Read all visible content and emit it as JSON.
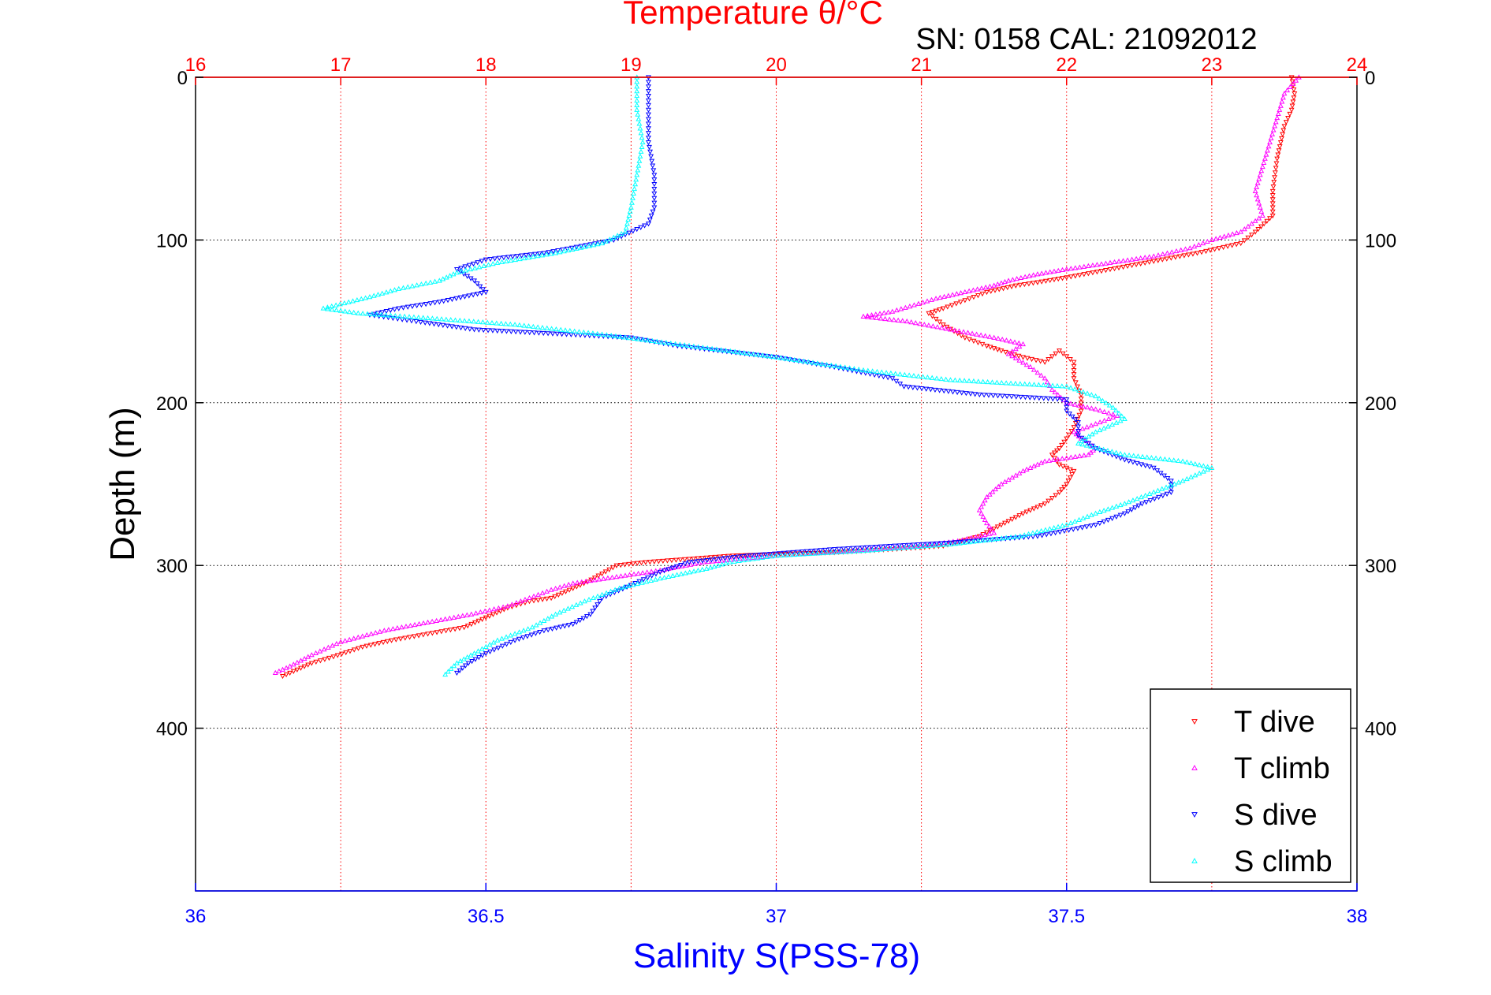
{
  "chart_data": {
    "type": "scatter",
    "title": "Temperature θ/°C",
    "subtitle": "SN: 0158  CAL: 21092012",
    "xlabel": "Salinity S(PSS-78)",
    "ylabel": "Depth (m)",
    "x_bottom": {
      "range": [
        36,
        38
      ],
      "ticks": [
        "36",
        "36.5",
        "37",
        "37.5",
        "38"
      ],
      "color": "#0000ff"
    },
    "x_top": {
      "range": [
        16,
        24
      ],
      "ticks": [
        "16",
        "17",
        "18",
        "19",
        "20",
        "21",
        "22",
        "23",
        "24"
      ],
      "color": "#ff0000"
    },
    "y": {
      "range": [
        0,
        500
      ],
      "reversed": true,
      "ticks": [
        "0",
        "100",
        "200",
        "300",
        "400"
      ]
    },
    "grid": true,
    "legend": {
      "placement": "bottom-right",
      "entries": [
        {
          "label": "T dive",
          "color": "#ff0000",
          "marker": "triangle-down"
        },
        {
          "label": "T climb",
          "color": "#ff00ff",
          "marker": "triangle-up"
        },
        {
          "label": "S dive",
          "color": "#0000ff",
          "marker": "triangle-down"
        },
        {
          "label": "S climb",
          "color": "#00ffff",
          "marker": "triangle-up"
        }
      ]
    },
    "series": [
      {
        "name": "T dive",
        "axis": "top",
        "color": "#ff0000",
        "marker": "triangle-down",
        "points": [
          [
            23.55,
            0
          ],
          [
            23.57,
            10
          ],
          [
            23.55,
            20
          ],
          [
            23.5,
            30
          ],
          [
            23.45,
            50
          ],
          [
            23.42,
            70
          ],
          [
            23.42,
            85
          ],
          [
            23.3,
            95
          ],
          [
            23.2,
            102
          ],
          [
            22.9,
            108
          ],
          [
            22.6,
            113
          ],
          [
            22.3,
            118
          ],
          [
            22.0,
            123
          ],
          [
            21.8,
            126
          ],
          [
            21.65,
            128
          ],
          [
            21.45,
            132
          ],
          [
            21.3,
            137
          ],
          [
            21.15,
            142
          ],
          [
            21.05,
            145
          ],
          [
            21.15,
            152
          ],
          [
            21.3,
            160
          ],
          [
            21.45,
            165
          ],
          [
            21.55,
            168
          ],
          [
            21.7,
            172
          ],
          [
            21.85,
            175
          ],
          [
            21.95,
            168
          ],
          [
            22.05,
            175
          ],
          [
            22.05,
            185
          ],
          [
            22.1,
            195
          ],
          [
            22.1,
            205
          ],
          [
            22.05,
            215
          ],
          [
            22.0,
            222
          ],
          [
            21.95,
            228
          ],
          [
            21.9,
            232
          ],
          [
            21.95,
            238
          ],
          [
            22.05,
            242
          ],
          [
            22.0,
            250
          ],
          [
            21.95,
            255
          ],
          [
            21.85,
            262
          ],
          [
            21.7,
            268
          ],
          [
            21.55,
            275
          ],
          [
            21.4,
            282
          ],
          [
            21.15,
            288
          ],
          [
            20.8,
            290
          ],
          [
            20.4,
            292
          ],
          [
            20.0,
            293
          ],
          [
            19.7,
            294
          ],
          [
            19.4,
            296
          ],
          [
            19.1,
            298
          ],
          [
            18.9,
            300
          ],
          [
            18.8,
            305
          ],
          [
            18.7,
            310
          ],
          [
            18.55,
            316
          ],
          [
            18.45,
            320
          ],
          [
            18.3,
            322
          ],
          [
            18.15,
            326
          ],
          [
            18.05,
            330
          ],
          [
            17.95,
            334
          ],
          [
            17.85,
            338
          ],
          [
            17.6,
            342
          ],
          [
            17.35,
            346
          ],
          [
            17.15,
            350
          ],
          [
            16.95,
            356
          ],
          [
            16.8,
            360
          ],
          [
            16.7,
            364
          ],
          [
            16.6,
            368
          ]
        ]
      },
      {
        "name": "T climb",
        "axis": "top",
        "color": "#ff00ff",
        "marker": "triangle-up",
        "points": [
          [
            23.6,
            0
          ],
          [
            23.5,
            10
          ],
          [
            23.45,
            25
          ],
          [
            23.4,
            40
          ],
          [
            23.35,
            55
          ],
          [
            23.3,
            70
          ],
          [
            23.35,
            85
          ],
          [
            23.2,
            95
          ],
          [
            23.0,
            100
          ],
          [
            22.85,
            105
          ],
          [
            22.6,
            110
          ],
          [
            22.3,
            114
          ],
          [
            22.0,
            118
          ],
          [
            21.8,
            121
          ],
          [
            21.6,
            125
          ],
          [
            21.5,
            128
          ],
          [
            21.3,
            132
          ],
          [
            21.1,
            136
          ],
          [
            20.95,
            140
          ],
          [
            20.8,
            144
          ],
          [
            20.6,
            147
          ],
          [
            20.9,
            150
          ],
          [
            21.2,
            155
          ],
          [
            21.5,
            160
          ],
          [
            21.7,
            164
          ],
          [
            21.6,
            170
          ],
          [
            21.75,
            178
          ],
          [
            21.85,
            185
          ],
          [
            21.9,
            192
          ],
          [
            22.0,
            200
          ],
          [
            22.2,
            204
          ],
          [
            22.35,
            208
          ],
          [
            22.2,
            213
          ],
          [
            22.05,
            218
          ],
          [
            22.1,
            222
          ],
          [
            22.2,
            228
          ],
          [
            22.15,
            232
          ],
          [
            21.85,
            236
          ],
          [
            21.7,
            242
          ],
          [
            21.55,
            250
          ],
          [
            21.45,
            258
          ],
          [
            21.4,
            266
          ],
          [
            21.45,
            274
          ],
          [
            21.5,
            280
          ],
          [
            21.25,
            285
          ],
          [
            21.0,
            288
          ],
          [
            20.5,
            291
          ],
          [
            20.0,
            294
          ],
          [
            19.5,
            298
          ],
          [
            19.2,
            303
          ],
          [
            18.9,
            307
          ],
          [
            18.6,
            311
          ],
          [
            18.45,
            315
          ],
          [
            18.3,
            320
          ],
          [
            18.15,
            325
          ],
          [
            17.9,
            330
          ],
          [
            17.6,
            335
          ],
          [
            17.3,
            340
          ],
          [
            17.0,
            347
          ],
          [
            16.8,
            355
          ],
          [
            16.65,
            362
          ],
          [
            16.55,
            366
          ]
        ]
      },
      {
        "name": "S dive",
        "axis": "bottom",
        "color": "#0000ff",
        "marker": "triangle-down",
        "points": [
          [
            36.78,
            0
          ],
          [
            36.78,
            20
          ],
          [
            36.78,
            40
          ],
          [
            36.79,
            60
          ],
          [
            36.79,
            80
          ],
          [
            36.78,
            90
          ],
          [
            36.72,
            100
          ],
          [
            36.6,
            108
          ],
          [
            36.5,
            112
          ],
          [
            36.45,
            118
          ],
          [
            36.48,
            125
          ],
          [
            36.5,
            132
          ],
          [
            36.42,
            138
          ],
          [
            36.35,
            142
          ],
          [
            36.3,
            146
          ],
          [
            36.38,
            150
          ],
          [
            36.48,
            155
          ],
          [
            36.75,
            160
          ],
          [
            36.83,
            165
          ],
          [
            37.0,
            172
          ],
          [
            37.1,
            178
          ],
          [
            37.2,
            185
          ],
          [
            37.22,
            190
          ],
          [
            37.35,
            195
          ],
          [
            37.5,
            198
          ],
          [
            37.5,
            205
          ],
          [
            37.52,
            212
          ],
          [
            37.52,
            220
          ],
          [
            37.55,
            228
          ],
          [
            37.6,
            235
          ],
          [
            37.65,
            240
          ],
          [
            37.68,
            248
          ],
          [
            37.68,
            255
          ],
          [
            37.63,
            262
          ],
          [
            37.6,
            268
          ],
          [
            37.55,
            275
          ],
          [
            37.45,
            282
          ],
          [
            37.3,
            286
          ],
          [
            37.1,
            290
          ],
          [
            36.95,
            294
          ],
          [
            36.85,
            298
          ],
          [
            36.8,
            304
          ],
          [
            36.75,
            312
          ],
          [
            36.7,
            320
          ],
          [
            36.68,
            330
          ],
          [
            36.65,
            336
          ],
          [
            36.6,
            340
          ],
          [
            36.55,
            346
          ],
          [
            36.5,
            354
          ],
          [
            36.47,
            360
          ],
          [
            36.45,
            366
          ]
        ]
      },
      {
        "name": "S climb",
        "axis": "bottom",
        "color": "#00ffff",
        "marker": "triangle-up",
        "points": [
          [
            36.76,
            0
          ],
          [
            36.76,
            20
          ],
          [
            36.77,
            40
          ],
          [
            36.76,
            60
          ],
          [
            36.75,
            80
          ],
          [
            36.74,
            95
          ],
          [
            36.7,
            102
          ],
          [
            36.62,
            108
          ],
          [
            36.52,
            114
          ],
          [
            36.45,
            120
          ],
          [
            36.42,
            125
          ],
          [
            36.35,
            130
          ],
          [
            36.3,
            135
          ],
          [
            36.22,
            142
          ],
          [
            36.28,
            145
          ],
          [
            36.4,
            148
          ],
          [
            36.55,
            152
          ],
          [
            36.7,
            158
          ],
          [
            36.85,
            165
          ],
          [
            37.0,
            172
          ],
          [
            37.15,
            180
          ],
          [
            37.3,
            186
          ],
          [
            37.5,
            190
          ],
          [
            37.55,
            196
          ],
          [
            37.58,
            203
          ],
          [
            37.6,
            210
          ],
          [
            37.55,
            218
          ],
          [
            37.52,
            225
          ],
          [
            37.6,
            232
          ],
          [
            37.7,
            236
          ],
          [
            37.75,
            240
          ],
          [
            37.7,
            248
          ],
          [
            37.65,
            255
          ],
          [
            37.6,
            262
          ],
          [
            37.55,
            268
          ],
          [
            37.5,
            275
          ],
          [
            37.42,
            282
          ],
          [
            37.3,
            287
          ],
          [
            37.15,
            291
          ],
          [
            37.0,
            294
          ],
          [
            36.92,
            298
          ],
          [
            36.88,
            302
          ],
          [
            36.8,
            308
          ],
          [
            36.73,
            314
          ],
          [
            36.67,
            322
          ],
          [
            36.62,
            330
          ],
          [
            36.58,
            338
          ],
          [
            36.52,
            346
          ],
          [
            36.48,
            354
          ],
          [
            36.45,
            360
          ],
          [
            36.43,
            367
          ]
        ]
      }
    ]
  }
}
